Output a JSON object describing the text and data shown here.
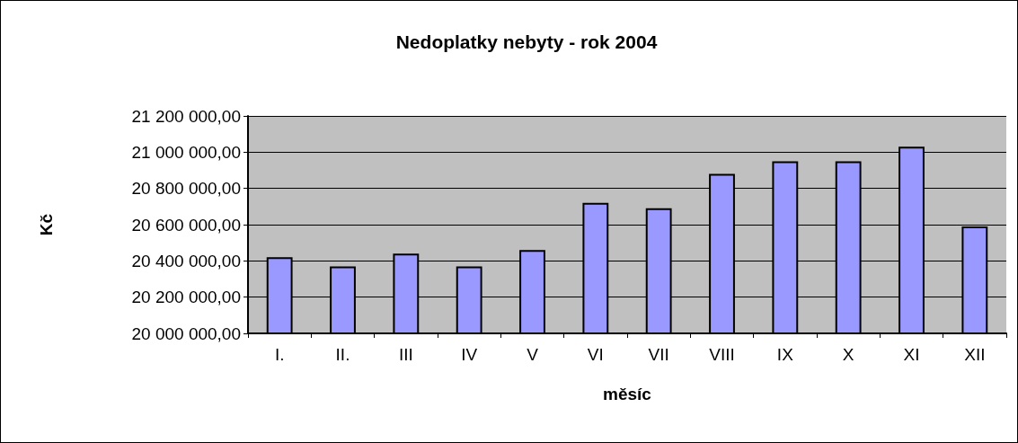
{
  "chart_data": {
    "type": "bar",
    "title": "Nedoplatky nebyty - rok 2004",
    "xlabel": "měsíc",
    "ylabel": "Kč",
    "categories": [
      "I.",
      "II.",
      "III",
      "IV",
      "V",
      "VI",
      "VII",
      "VIII",
      "IX",
      "X",
      "XI",
      "XII"
    ],
    "values": [
      20420000,
      20370000,
      20440000,
      20370000,
      20460000,
      20720000,
      20690000,
      20880000,
      20950000,
      20950000,
      21030000,
      20590000
    ],
    "color": "#9999ff",
    "ylim": [
      20000000,
      21200000
    ],
    "yticks": [
      {
        "value": 20000000,
        "label": "20 000 000,00"
      },
      {
        "value": 20200000,
        "label": "20 200 000,00"
      },
      {
        "value": 20400000,
        "label": "20 400 000,00"
      },
      {
        "value": 20600000,
        "label": "20 600 000,00"
      },
      {
        "value": 20800000,
        "label": "20 800 000,00"
      },
      {
        "value": 21000000,
        "label": "21 000 000,00"
      },
      {
        "value": 21200000,
        "label": "21 200 000,00"
      }
    ],
    "grid": "y"
  }
}
